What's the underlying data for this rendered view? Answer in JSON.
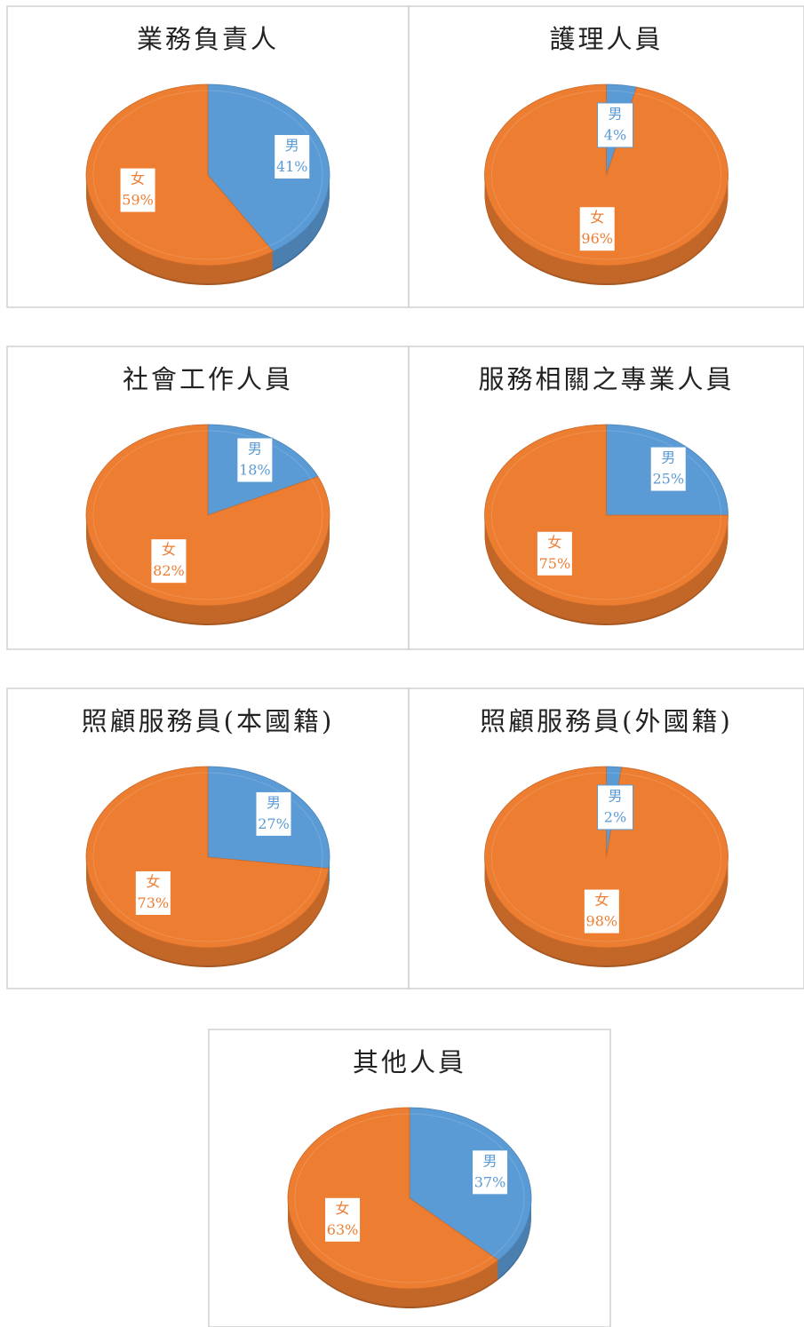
{
  "chart_data": [
    {
      "type": "pie",
      "title": "業務負責人",
      "categories": [
        "男",
        "女"
      ],
      "values": [
        41,
        59
      ],
      "value_labels": [
        "41%",
        "59%"
      ],
      "colors": [
        "#5b9bd5",
        "#ed7d31"
      ]
    },
    {
      "type": "pie",
      "title": "護理人員",
      "categories": [
        "男",
        "女"
      ],
      "values": [
        4,
        96
      ],
      "value_labels": [
        "4%",
        "96%"
      ],
      "colors": [
        "#5b9bd5",
        "#ed7d31"
      ]
    },
    {
      "type": "pie",
      "title": "社會工作人員",
      "categories": [
        "男",
        "女"
      ],
      "values": [
        18,
        82
      ],
      "value_labels": [
        "18%",
        "82%"
      ],
      "colors": [
        "#5b9bd5",
        "#ed7d31"
      ]
    },
    {
      "type": "pie",
      "title": "服務相關之專業人員",
      "categories": [
        "男",
        "女"
      ],
      "values": [
        25,
        75
      ],
      "value_labels": [
        "25%",
        "75%"
      ],
      "colors": [
        "#5b9bd5",
        "#ed7d31"
      ]
    },
    {
      "type": "pie",
      "title": "照顧服務員(本國籍)",
      "categories": [
        "男",
        "女"
      ],
      "values": [
        27,
        73
      ],
      "value_labels": [
        "27%",
        "73%"
      ],
      "colors": [
        "#5b9bd5",
        "#ed7d31"
      ]
    },
    {
      "type": "pie",
      "title": "照顧服務員(外國籍)",
      "categories": [
        "男",
        "女"
      ],
      "values": [
        2,
        98
      ],
      "value_labels": [
        "2%",
        "98%"
      ],
      "colors": [
        "#5b9bd5",
        "#ed7d31"
      ]
    },
    {
      "type": "pie",
      "title": "其他人員",
      "categories": [
        "男",
        "女"
      ],
      "values": [
        37,
        63
      ],
      "value_labels": [
        "37%",
        "63%"
      ],
      "colors": [
        "#5b9bd5",
        "#ed7d31"
      ]
    }
  ]
}
